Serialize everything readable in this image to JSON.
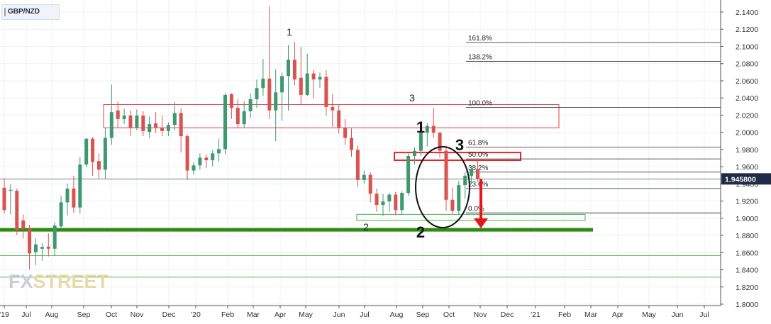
{
  "symbol": "GBP/NZD",
  "logo": {
    "fx": "FX",
    "street": "STREET"
  },
  "chart_data": {
    "type": "candlestick",
    "ylim": [
      1.8,
      2.15
    ],
    "y_ticks": [
      "2.1400",
      "2.1200",
      "2.1000",
      "2.0800",
      "2.0600",
      "2.0400",
      "2.0200",
      "2.0000",
      "1.9800",
      "1.9600",
      "1.9400",
      "1.9200",
      "1.9000",
      "1.8800",
      "1.8600",
      "1.8400",
      "1.8200",
      "1.8000"
    ],
    "x_labels": [
      "'19",
      "Jul",
      "Aug",
      "Sep",
      "Oct",
      "Nov",
      "Dec",
      "'20",
      "Feb",
      "Mar",
      "Apr",
      "May",
      "Jun",
      "Jul",
      "Aug",
      "Sep",
      "Oct",
      "Nov",
      "Dec",
      "'21",
      "Feb",
      "Mar",
      "Apr",
      "May",
      "Jun",
      "Jul"
    ],
    "last_price": "1.945800",
    "candles": [
      [
        1.9355,
        1.9465,
        1.905,
        1.9095
      ],
      [
        1.932,
        1.9395,
        1.9045,
        1.933
      ],
      [
        1.932,
        1.9345,
        1.8805,
        1.886
      ],
      [
        1.8975,
        1.9045,
        1.8765,
        1.8875
      ],
      [
        1.8875,
        1.8925,
        1.8405,
        1.859
      ],
      [
        1.8605,
        1.8765,
        1.8455,
        1.8695
      ],
      [
        1.8645,
        1.871,
        1.8505,
        1.8665
      ],
      [
        1.867,
        1.8825,
        1.8555,
        1.8645
      ],
      [
        1.8645,
        1.8955,
        1.856,
        1.8915
      ],
      [
        1.8905,
        1.9265,
        1.8865,
        1.9185
      ],
      [
        1.9185,
        1.9405,
        1.9035,
        1.9345
      ],
      [
        1.9345,
        1.9495,
        1.9065,
        1.9125
      ],
      [
        1.9125,
        1.9715,
        1.9055,
        1.9625
      ],
      [
        1.9625,
        1.9935,
        1.9595,
        1.9925
      ],
      [
        1.9925,
        1.9945,
        1.9495,
        1.9655
      ],
      [
        1.9665,
        1.9755,
        1.9455,
        1.9565
      ],
      [
        1.9565,
        2.0055,
        1.9455,
        1.9935
      ],
      [
        1.9935,
        2.0555,
        1.9855,
        2.0235
      ],
      [
        2.0255,
        2.0355,
        2.0055,
        2.0155
      ],
      [
        2.0155,
        2.0275,
        2.0095,
        2.0195
      ],
      [
        2.0195,
        2.0255,
        1.9955,
        2.0055
      ],
      [
        2.0055,
        2.0265,
        2.0025,
        2.0195
      ],
      [
        2.0195,
        2.0245,
        1.9955,
        2.0015
      ],
      [
        2.0005,
        2.0185,
        1.9935,
        2.0095
      ],
      [
        2.0105,
        2.0235,
        1.9995,
        2.0055
      ],
      [
        2.0055,
        2.0195,
        1.9955,
        2.0015
      ],
      [
        2.0015,
        2.0115,
        1.9955,
        2.0085
      ],
      [
        2.0085,
        2.0355,
        2.0025,
        2.0225
      ],
      [
        2.0225,
        2.0285,
        1.9765,
        1.9955
      ],
      [
        1.9955,
        1.9975,
        1.9445,
        1.9555
      ],
      [
        1.9555,
        1.9655,
        1.9505,
        1.9615
      ],
      [
        1.9615,
        1.9755,
        1.9565,
        1.9705
      ],
      [
        1.9705,
        1.9745,
        1.9585,
        1.9675
      ],
      [
        1.9675,
        1.9795,
        1.9605,
        1.9755
      ],
      [
        1.9755,
        1.9925,
        1.9655,
        1.9805
      ],
      [
        1.9805,
        2.0455,
        1.9745,
        2.0435
      ],
      [
        2.0445,
        2.0455,
        2.0155,
        2.0285
      ],
      [
        2.0285,
        2.0385,
        2.0045,
        2.0095
      ],
      [
        2.0095,
        2.0365,
        2.0055,
        2.0245
      ],
      [
        2.0245,
        2.0455,
        2.0165,
        2.0385
      ],
      [
        2.0385,
        2.0615,
        2.0285,
        2.0515
      ],
      [
        2.0515,
        2.0855,
        2.0425,
        2.0625
      ],
      [
        2.0625,
        2.1465,
        2.0155,
        2.0255
      ],
      [
        2.0255,
        2.0735,
        1.9895,
        2.0465
      ],
      [
        2.0465,
        2.0695,
        2.0135,
        2.0655
      ],
      [
        2.0655,
        2.1015,
        2.0255,
        2.0845
      ],
      [
        2.0845,
        2.1055,
        2.0545,
        2.0615
      ],
      [
        2.0635,
        2.0995,
        2.0325,
        2.0435
      ],
      [
        2.0435,
        2.0915,
        2.0425,
        2.0685
      ],
      [
        2.0685,
        2.0725,
        2.0395,
        2.0615
      ],
      [
        2.0615,
        2.0695,
        2.0515,
        2.0645
      ],
      [
        2.0645,
        2.0725,
        2.0195,
        2.0295
      ],
      [
        2.0295,
        2.0445,
        2.0065,
        2.0255
      ],
      [
        2.0255,
        2.0325,
        1.9985,
        2.0055
      ],
      [
        2.0055,
        2.0155,
        1.9855,
        1.9935
      ],
      [
        1.9935,
        2.0045,
        1.9715,
        1.9795
      ],
      [
        1.9795,
        1.9845,
        1.9365,
        1.9445
      ],
      [
        1.9445,
        1.9555,
        1.9405,
        1.9505
      ],
      [
        1.9505,
        1.9535,
        1.9185,
        1.9285
      ],
      [
        1.9285,
        1.9345,
        1.9075,
        1.9155
      ],
      [
        1.9155,
        1.9285,
        1.9025,
        1.9195
      ],
      [
        1.9195,
        1.9295,
        1.9075,
        1.9275
      ],
      [
        1.9275,
        1.9305,
        1.9035,
        1.9095
      ],
      [
        1.9095,
        1.9315,
        1.9035,
        1.9295
      ],
      [
        1.9295,
        1.9755,
        1.9265,
        1.9725
      ],
      [
        1.9725,
        1.9825,
        1.9625,
        1.9785
      ],
      [
        1.9785,
        2.0035,
        1.9725,
        1.9995
      ],
      [
        1.9995,
        2.0105,
        1.9835,
        2.0075
      ],
      [
        2.0075,
        2.0285,
        1.9935,
        1.9995
      ],
      [
        1.9995,
        2.0005,
        1.9705,
        1.9785
      ],
      [
        1.9785,
        1.9845,
        1.9085,
        1.9215
      ],
      [
        1.9215,
        1.9355,
        1.9045,
        1.9085
      ],
      [
        1.9085,
        1.9435,
        1.9045,
        1.9385
      ],
      [
        1.9385,
        1.9535,
        1.9225,
        1.9495
      ],
      [
        1.9495,
        1.9605,
        1.9405,
        1.9575
      ],
      [
        1.9575,
        1.9685,
        1.9425,
        1.9458
      ]
    ],
    "fibonacci": [
      {
        "label": "161.8%",
        "value": 2.1046
      },
      {
        "label": "138.2%",
        "value": 2.0826
      },
      {
        "label": "100.0%",
        "value": 2.029
      },
      {
        "label": "61.8%",
        "value": 1.9829
      },
      {
        "label": "50.0%",
        "value": 1.9691
      },
      {
        "label": "38.2%",
        "value": 1.9537
      },
      {
        "label": "23.6%",
        "value": 1.9346
      },
      {
        "label": "0.0%",
        "value": 1.9062
      }
    ],
    "annotations": {
      "wave_labels": [
        "1",
        "2",
        "3"
      ],
      "wave_labels_bold": [
        "1",
        "2",
        "3"
      ]
    },
    "horizontal_levels": [
      1.8865,
      1.8565,
      1.8315
    ],
    "zones": [
      {
        "from": 2.0053,
        "to": 2.0323
      },
      {
        "from": 1.9675,
        "to": 1.9765
      },
      {
        "from": 1.8975,
        "to": 1.9045
      }
    ]
  }
}
